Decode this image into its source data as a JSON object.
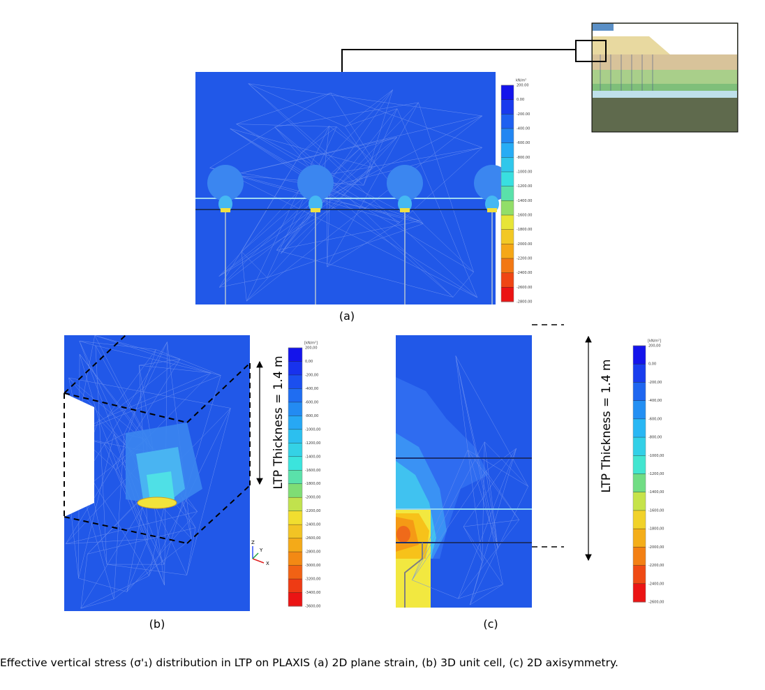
{
  "panel_a": {
    "label": "(a)",
    "colorbar": {
      "unit": "kN/m²",
      "ticks": [
        "200.00",
        "0.00",
        "-200.00",
        "-400.00",
        "-600.00",
        "-800.00",
        "-1000.00",
        "-1200.00",
        "-1400.00",
        "-1600.00",
        "-1800.00",
        "-2000.00",
        "-2200.00",
        "-2400.00",
        "-2600.00",
        "-2800.00"
      ]
    }
  },
  "panel_b": {
    "label": "(b)",
    "dimension": "LTP Thickness = 1.4 m",
    "axes": [
      "Z",
      "Y",
      "X"
    ],
    "colorbar": {
      "unit": "[kN/m²]",
      "ticks": [
        "200,00",
        "0,00",
        "-200,00",
        "-400,00",
        "-600,00",
        "-800,00",
        "-1000,00",
        "-1200,00",
        "-1400,00",
        "-1600,00",
        "-1800,00",
        "-2000,00",
        "-2200,00",
        "-2400,00",
        "-2600,00",
        "-2800,00",
        "-3000,00",
        "-3200,00",
        "-3400,00",
        "-3600,00"
      ]
    }
  },
  "panel_c": {
    "label": "(c)",
    "dimension": "LTP Thickness = 1.4 m",
    "colorbar": {
      "unit": "[kN/m²]",
      "ticks": [
        "200,00",
        "0,00",
        "-200,00",
        "-400,00",
        "-600,00",
        "-800,00",
        "-1000,00",
        "-1200,00",
        "-1400,00",
        "-1600,00",
        "-1800,00",
        "-2000,00",
        "-2200,00",
        "-2400,00",
        "-2600,00"
      ]
    }
  },
  "caption": "Effective vertical stress (σ'₁) distribution in LTP on PLAXIS (a) 2D plane strain, (b) 3D unit cell, (c) 2D axisymmetry."
}
